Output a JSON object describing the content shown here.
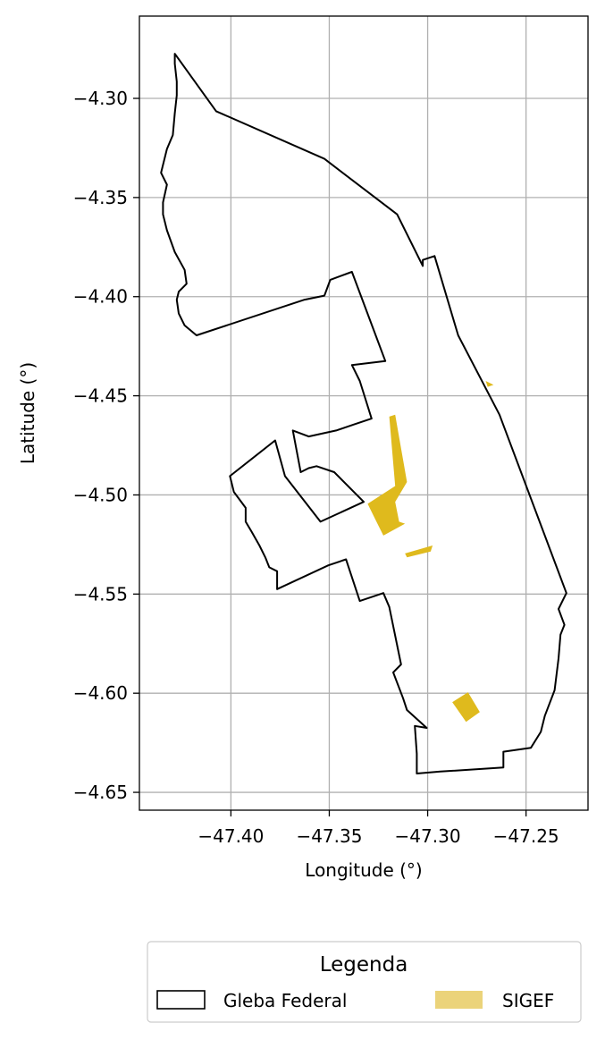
{
  "chart_data": {
    "type": "map",
    "xlabel": "Longitude (°)",
    "ylabel": "Latitude (°)",
    "xlim": [
      -47.4465,
      -47.2185
    ],
    "ylim": [
      -4.659,
      -4.2585
    ],
    "grid": true,
    "x_ticks": [
      -47.4,
      -47.35,
      -47.3,
      -47.25
    ],
    "x_tick_labels": [
      "−47.40",
      "−47.35",
      "−47.30",
      "−47.25"
    ],
    "y_ticks": [
      -4.3,
      -4.35,
      -4.4,
      -4.45,
      -4.5,
      -4.55,
      -4.6,
      -4.65
    ],
    "y_tick_labels": [
      "−4.30",
      "−4.35",
      "−4.40",
      "−4.45",
      "−4.50",
      "−4.55",
      "−4.60",
      "−4.65"
    ],
    "legend": {
      "title": "Legenda",
      "placement": "bottom-center, below plot",
      "entries": [
        {
          "label": "Gleba Federal",
          "style": "outline"
        },
        {
          "label": "SIGEF",
          "style": "fill"
        }
      ]
    },
    "colors": {
      "gleba_edge": "#000000",
      "sigef_fill": "#dfba1d",
      "legend_sigef_patch": "#ebd37a",
      "grid": "#b0b0b0"
    },
    "series": [
      {
        "name": "Gleba Federal",
        "kind": "polygon-outline",
        "shapes": [
          [
            [
              -47.4285,
              -4.2775
            ],
            [
              -47.4075,
              -4.3065
            ],
            [
              -47.3525,
              -4.3305
            ],
            [
              -47.3155,
              -4.3585
            ],
            [
              -47.3025,
              -4.3845
            ],
            [
              -47.3025,
              -4.3815
            ],
            [
              -47.2965,
              -4.3795
            ],
            [
              -47.2845,
              -4.4195
            ],
            [
              -47.2635,
              -4.4595
            ],
            [
              -47.2295,
              -4.5495
            ],
            [
              -47.2335,
              -4.5575
            ],
            [
              -47.2305,
              -4.5655
            ],
            [
              -47.2325,
              -4.5705
            ],
            [
              -47.2335,
              -4.5825
            ],
            [
              -47.2355,
              -4.5985
            ],
            [
              -47.2405,
              -4.6115
            ],
            [
              -47.2425,
              -4.6195
            ],
            [
              -47.2475,
              -4.6275
            ],
            [
              -47.2615,
              -4.6295
            ],
            [
              -47.2615,
              -4.6375
            ],
            [
              -47.2935,
              -4.6395
            ],
            [
              -47.3055,
              -4.6405
            ],
            [
              -47.3055,
              -4.6305
            ],
            [
              -47.3065,
              -4.6165
            ],
            [
              -47.3005,
              -4.6175
            ],
            [
              -47.3105,
              -4.6085
            ],
            [
              -47.3125,
              -4.6025
            ],
            [
              -47.3175,
              -4.5895
            ],
            [
              -47.3135,
              -4.5855
            ],
            [
              -47.3195,
              -4.5565
            ],
            [
              -47.3225,
              -4.5495
            ],
            [
              -47.3345,
              -4.5535
            ],
            [
              -47.3415,
              -4.5325
            ],
            [
              -47.3505,
              -4.5355
            ],
            [
              -47.3765,
              -4.5475
            ],
            [
              -47.3765,
              -4.5385
            ],
            [
              -47.3805,
              -4.5365
            ],
            [
              -47.3825,
              -4.5315
            ],
            [
              -47.3855,
              -4.5255
            ],
            [
              -47.3895,
              -4.5185
            ],
            [
              -47.3925,
              -4.5135
            ],
            [
              -47.3925,
              -4.5065
            ],
            [
              -47.3985,
              -4.4985
            ],
            [
              -47.4005,
              -4.4905
            ],
            [
              -47.3775,
              -4.4725
            ],
            [
              -47.3725,
              -4.4905
            ],
            [
              -47.3545,
              -4.5135
            ],
            [
              -47.3325,
              -4.5035
            ],
            [
              -47.3475,
              -4.4885
            ],
            [
              -47.3565,
              -4.4855
            ],
            [
              -47.3605,
              -4.4865
            ],
            [
              -47.3645,
              -4.4885
            ],
            [
              -47.3685,
              -4.4675
            ],
            [
              -47.3605,
              -4.4705
            ],
            [
              -47.3465,
              -4.4675
            ],
            [
              -47.3375,
              -4.4645
            ],
            [
              -47.3285,
              -4.4615
            ],
            [
              -47.3345,
              -4.4425
            ],
            [
              -47.3385,
              -4.4345
            ],
            [
              -47.3215,
              -4.4325
            ],
            [
              -47.3385,
              -4.3875
            ],
            [
              -47.3495,
              -4.3915
            ],
            [
              -47.3525,
              -4.3995
            ],
            [
              -47.3625,
              -4.4015
            ],
            [
              -47.4175,
              -4.4195
            ],
            [
              -47.4235,
              -4.4145
            ],
            [
              -47.4265,
              -4.4085
            ],
            [
              -47.4275,
              -4.4015
            ],
            [
              -47.4265,
              -4.3975
            ],
            [
              -47.4225,
              -4.3935
            ],
            [
              -47.4235,
              -4.3865
            ],
            [
              -47.4285,
              -4.3775
            ],
            [
              -47.4325,
              -4.3665
            ],
            [
              -47.4345,
              -4.3585
            ],
            [
              -47.4345,
              -4.3525
            ],
            [
              -47.4325,
              -4.3435
            ],
            [
              -47.4355,
              -4.3375
            ],
            [
              -47.4325,
              -4.3255
            ],
            [
              -47.4295,
              -4.3185
            ],
            [
              -47.4285,
              -4.3075
            ],
            [
              -47.4275,
              -4.2985
            ],
            [
              -47.4275,
              -4.2915
            ],
            [
              -47.4285,
              -4.2825
            ],
            [
              -47.4285,
              -4.2775
            ]
          ]
        ]
      },
      {
        "name": "SIGEF",
        "kind": "polygon-fill",
        "shapes": [
          [
            [
              -47.3195,
              -4.4605
            ],
            [
              -47.3165,
              -4.4595
            ],
            [
              -47.3105,
              -4.4935
            ],
            [
              -47.3165,
              -4.5035
            ],
            [
              -47.3145,
              -4.5135
            ],
            [
              -47.3115,
              -4.5145
            ],
            [
              -47.3225,
              -4.5205
            ],
            [
              -47.3265,
              -4.5125
            ],
            [
              -47.3305,
              -4.5045
            ],
            [
              -47.3165,
              -4.4955
            ]
          ],
          [
            [
              -47.3115,
              -4.5295
            ],
            [
              -47.2975,
              -4.5255
            ],
            [
              -47.2985,
              -4.5285
            ],
            [
              -47.3105,
              -4.5315
            ]
          ],
          [
            [
              -47.2875,
              -4.6045
            ],
            [
              -47.2795,
              -4.5995
            ],
            [
              -47.2735,
              -4.6095
            ],
            [
              -47.2805,
              -4.6145
            ]
          ],
          [
            [
              -47.2705,
              -4.4425
            ],
            [
              -47.2695,
              -4.4455
            ],
            [
              -47.2665,
              -4.4445
            ]
          ]
        ]
      }
    ]
  }
}
